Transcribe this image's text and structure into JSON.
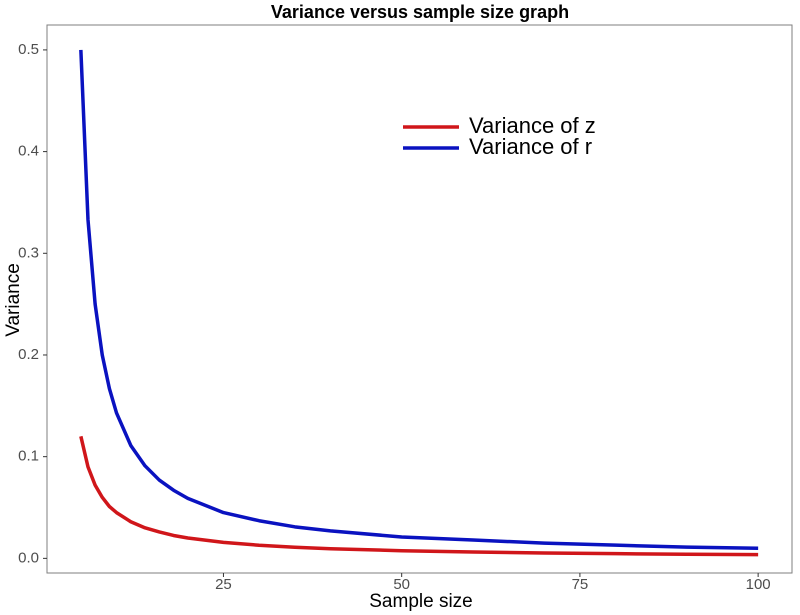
{
  "chart_data": {
    "type": "line",
    "title": "Variance versus sample size graph",
    "x_label": "Sample size",
    "y_label": "Variance",
    "x": [
      5,
      6,
      7,
      8,
      9,
      10,
      12,
      14,
      16,
      18,
      20,
      25,
      30,
      35,
      40,
      50,
      60,
      70,
      80,
      90,
      100
    ],
    "series": [
      {
        "name": "Variance of z",
        "color": "#d0161a",
        "values": [
          0.12,
          0.09,
          0.072,
          0.06,
          0.051,
          0.045,
          0.036,
          0.03,
          0.026,
          0.0225,
          0.02,
          0.0157,
          0.0129,
          0.0109,
          0.0095,
          0.0075,
          0.0062,
          0.0053,
          0.0046,
          0.0041,
          0.0037
        ]
      },
      {
        "name": "Variance of r",
        "color": "#0a12c0",
        "values": [
          0.5,
          0.333,
          0.25,
          0.2,
          0.167,
          0.143,
          0.111,
          0.091,
          0.077,
          0.067,
          0.059,
          0.045,
          0.037,
          0.031,
          0.027,
          0.021,
          0.018,
          0.015,
          0.013,
          0.011,
          0.01
        ]
      }
    ],
    "xlim": [
      0.25,
      104.75
    ],
    "xticks": [
      25,
      50,
      75,
      100
    ],
    "ylim": [
      -0.0144,
      0.5245
    ],
    "yticks": [
      {
        "value": 0,
        "label": "0.0"
      },
      0.1,
      0.2,
      0.3,
      0.4,
      0.5
    ],
    "grid": false,
    "legend": "top"
  }
}
